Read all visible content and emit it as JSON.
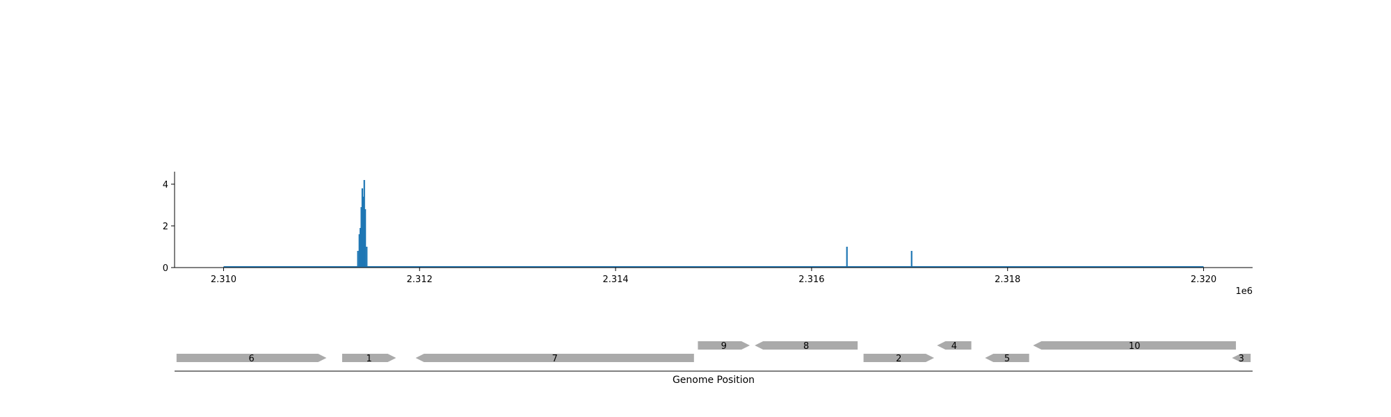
{
  "chart_data": [
    {
      "type": "bar",
      "xlim": [
        2309500,
        2320500
      ],
      "ylim": [
        0,
        4.6
      ],
      "x_ticks": [
        2310000,
        2312000,
        2314000,
        2316000,
        2318000,
        2320000
      ],
      "x_tick_labels": [
        "2.310",
        "2.312",
        "2.314",
        "2.316",
        "2.318",
        "2.320"
      ],
      "x_offset_label": "1e6",
      "y_ticks": [
        0,
        2,
        4
      ],
      "y_tick_labels": [
        "0",
        "2",
        "4"
      ],
      "grid": false,
      "series": [
        {
          "color": "#1f77b4",
          "points": [
            {
              "x": 2311370,
              "y": 0.8
            },
            {
              "x": 2311385,
              "y": 1.6
            },
            {
              "x": 2311395,
              "y": 1.9
            },
            {
              "x": 2311405,
              "y": 2.9
            },
            {
              "x": 2311415,
              "y": 3.8
            },
            {
              "x": 2311425,
              "y": 3.4
            },
            {
              "x": 2311435,
              "y": 4.2
            },
            {
              "x": 2311445,
              "y": 2.8
            },
            {
              "x": 2311460,
              "y": 1.0
            },
            {
              "x": 2316360,
              "y": 1.0
            },
            {
              "x": 2317020,
              "y": 0.8
            }
          ]
        }
      ]
    },
    {
      "type": "gene-map",
      "xlim": [
        2309500,
        2320500
      ],
      "xlabel": "Genome Position",
      "color": "#aaaaaa",
      "genes": [
        {
          "label": "6",
          "start": 2309520,
          "end": 2311050,
          "strand": "+",
          "row": 0
        },
        {
          "label": "1",
          "start": 2311210,
          "end": 2311760,
          "strand": "+",
          "row": 0
        },
        {
          "label": "7",
          "start": 2311960,
          "end": 2314800,
          "strand": "-",
          "row": 0
        },
        {
          "label": "9",
          "start": 2314840,
          "end": 2315370,
          "strand": "+",
          "row": 1
        },
        {
          "label": "8",
          "start": 2315420,
          "end": 2316470,
          "strand": "-",
          "row": 1
        },
        {
          "label": "2",
          "start": 2316530,
          "end": 2317250,
          "strand": "+",
          "row": 0
        },
        {
          "label": "4",
          "start": 2317280,
          "end": 2317630,
          "strand": "-",
          "row": 1
        },
        {
          "label": "5",
          "start": 2317770,
          "end": 2318220,
          "strand": "-",
          "row": 0
        },
        {
          "label": "10",
          "start": 2318260,
          "end": 2320330,
          "strand": "-",
          "row": 1
        },
        {
          "label": "3",
          "start": 2320290,
          "end": 2320480,
          "strand": "-",
          "row": 0
        }
      ]
    }
  ]
}
